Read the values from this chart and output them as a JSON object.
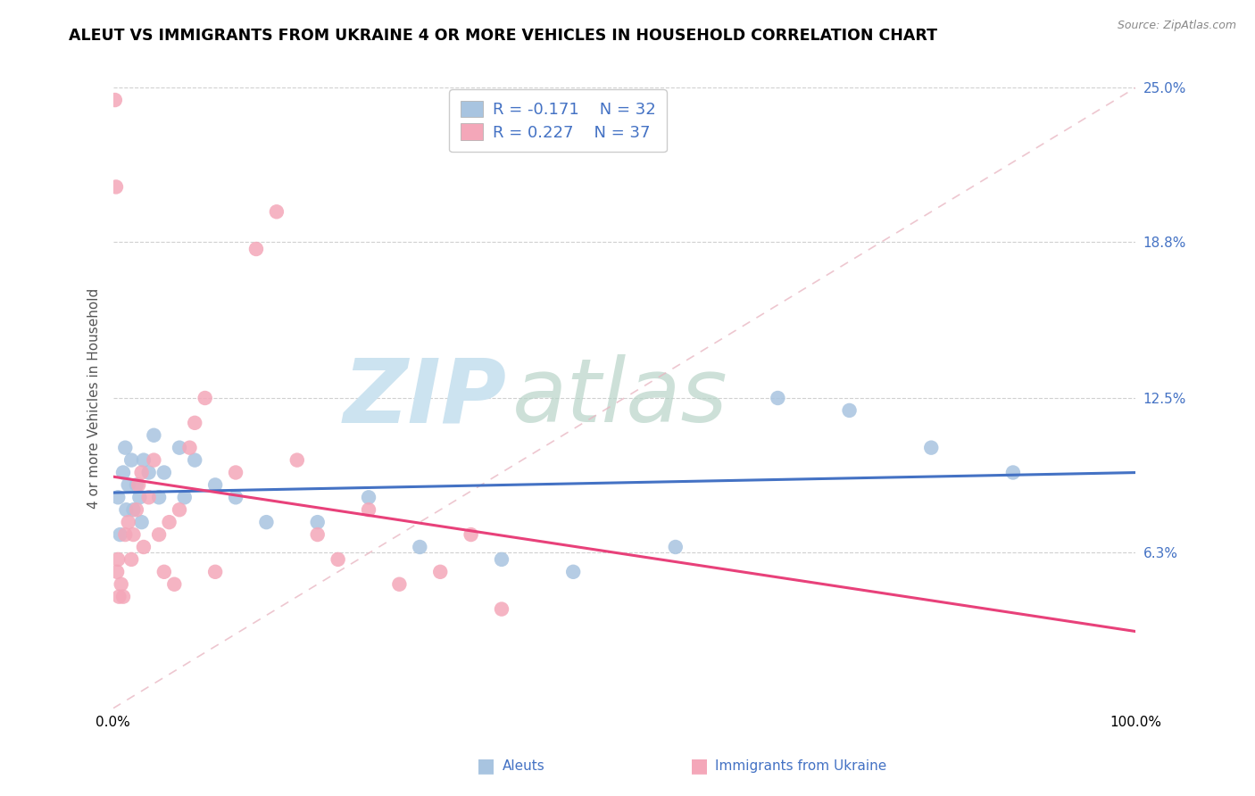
{
  "title": "ALEUT VS IMMIGRANTS FROM UKRAINE 4 OR MORE VEHICLES IN HOUSEHOLD CORRELATION CHART",
  "source": "Source: ZipAtlas.com",
  "ylabel": "4 or more Vehicles in Household",
  "legend_aleuts": "Aleuts",
  "legend_ukraine": "Immigrants from Ukraine",
  "r_aleuts": "-0.171",
  "n_aleuts": "32",
  "r_ukraine": "0.227",
  "n_ukraine": "37",
  "xmin": 0.0,
  "xmax": 100.0,
  "ymin": 0.0,
  "ymax": 25.0,
  "yticks": [
    6.3,
    12.5,
    18.8,
    25.0
  ],
  "ytick_labels": [
    "6.3%",
    "12.5%",
    "18.8%",
    "25.0%"
  ],
  "color_aleuts": "#a8c4e0",
  "color_ukraine": "#f4a7b9",
  "line_color_aleuts": "#4472c4",
  "line_color_ukraine": "#e8417a",
  "aleuts_x": [
    0.5,
    0.7,
    1.0,
    1.2,
    1.5,
    1.8,
    2.0,
    2.3,
    2.6,
    3.0,
    3.5,
    4.0,
    5.0,
    6.5,
    8.0,
    10.0,
    12.0,
    15.0,
    20.0,
    25.0,
    30.0,
    38.0,
    45.0,
    55.0,
    65.0,
    72.0,
    80.0,
    88.0,
    1.3,
    2.8,
    4.5,
    7.0
  ],
  "aleuts_y": [
    8.5,
    7.0,
    9.5,
    10.5,
    9.0,
    10.0,
    8.0,
    9.0,
    8.5,
    10.0,
    9.5,
    11.0,
    9.5,
    10.5,
    10.0,
    9.0,
    8.5,
    7.5,
    7.5,
    8.5,
    6.5,
    6.0,
    5.5,
    6.5,
    12.5,
    12.0,
    10.5,
    9.5,
    8.0,
    7.5,
    8.5,
    8.5
  ],
  "ukraine_x": [
    0.2,
    0.3,
    0.5,
    0.6,
    0.8,
    1.0,
    1.2,
    1.5,
    1.8,
    2.0,
    2.3,
    2.5,
    2.8,
    3.0,
    3.5,
    4.0,
    4.5,
    5.0,
    5.5,
    6.0,
    6.5,
    7.5,
    8.0,
    9.0,
    10.0,
    12.0,
    14.0,
    16.0,
    18.0,
    20.0,
    22.0,
    25.0,
    28.0,
    32.0,
    35.0,
    38.0,
    0.4
  ],
  "ukraine_y": [
    24.5,
    21.0,
    6.0,
    4.5,
    5.0,
    4.5,
    7.0,
    7.5,
    6.0,
    7.0,
    8.0,
    9.0,
    9.5,
    6.5,
    8.5,
    10.0,
    7.0,
    5.5,
    7.5,
    5.0,
    8.0,
    10.5,
    11.5,
    12.5,
    5.5,
    9.5,
    18.5,
    20.0,
    10.0,
    7.0,
    6.0,
    8.0,
    5.0,
    5.5,
    7.0,
    4.0,
    5.5
  ]
}
